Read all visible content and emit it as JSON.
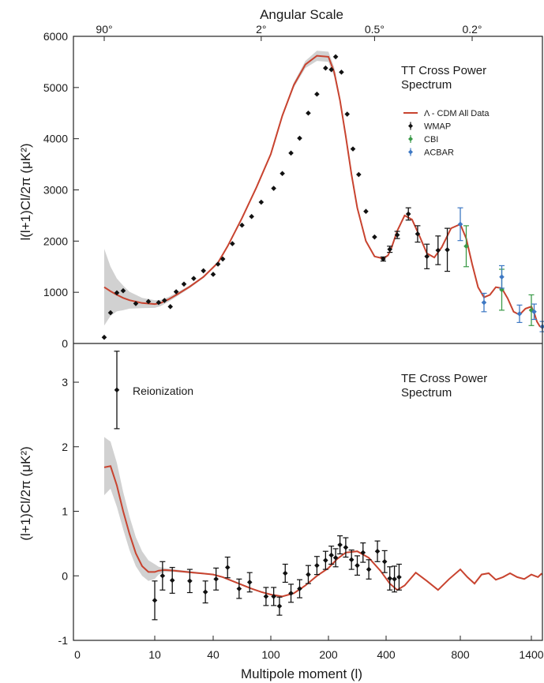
{
  "chart_data": [
    {
      "type": "scatter",
      "panel": "top",
      "title": "TT Cross Power Spectrum",
      "title_lines": [
        "TT Cross Power",
        "Spectrum"
      ],
      "top_axis_title": "Angular Scale",
      "top_ticks": [
        {
          "label": "90°",
          "l": 2
        },
        {
          "label": "2°",
          "l": 90
        },
        {
          "label": "0.5°",
          "l": 360
        },
        {
          "label": "0.2°",
          "l": 900
        }
      ],
      "ylabel": "l(l+1)Cl/2π (μK²)",
      "ylim": [
        0,
        6000
      ],
      "yticks": [
        0,
        1000,
        2000,
        3000,
        4000,
        5000,
        6000
      ],
      "legend": {
        "placement": "right",
        "entries": [
          {
            "label": "Λ - CDM All Data",
            "color": "#c8432f",
            "kind": "line"
          },
          {
            "label": "WMAP",
            "color": "#111111",
            "kind": "marker"
          },
          {
            "label": "CBI",
            "color": "#3a9a48",
            "kind": "marker"
          },
          {
            "label": "ACBAR",
            "color": "#3d78c4",
            "kind": "marker"
          }
        ]
      },
      "model": {
        "name": "Λ - CDM All Data",
        "color": "#c8432f",
        "x": [
          2,
          3,
          4,
          5,
          6,
          8,
          10,
          13,
          17,
          22,
          28,
          35,
          45,
          55,
          70,
          85,
          100,
          120,
          140,
          160,
          180,
          200,
          220,
          240,
          260,
          280,
          300,
          330,
          360,
          390,
          410,
          430,
          460,
          500,
          540,
          580,
          620,
          660,
          700,
          750,
          800,
          850,
          900,
          950,
          1000,
          1050,
          1100,
          1150,
          1200,
          1250,
          1300,
          1350,
          1400,
          1450,
          1500,
          1550,
          1600
        ],
        "y": [
          1100,
          1020,
          950,
          890,
          845,
          790,
          770,
          790,
          860,
          970,
          1110,
          1300,
          1580,
          1900,
          2450,
          3050,
          3700,
          4450,
          5050,
          5450,
          5620,
          5600,
          5300,
          4750,
          4050,
          3300,
          2650,
          2000,
          1700,
          1660,
          1720,
          1880,
          2200,
          2500,
          2420,
          2100,
          1760,
          1680,
          1880,
          2250,
          2330,
          2050,
          1550,
          1100,
          900,
          950,
          1100,
          1080,
          880,
          620,
          560,
          680,
          720,
          600,
          430,
          340,
          300
        ],
        "band_upper": [
          1850,
          1500,
          1270,
          1130,
          1010,
          890,
          845,
          850,
          905,
          1005,
          1135,
          1320,
          1600,
          1920,
          2470,
          3070,
          3720,
          4480,
          5100,
          5520,
          5720,
          5700,
          5390,
          4800,
          4080,
          3320,
          2670,
          2010,
          1710,
          1670,
          1730,
          1890,
          2210,
          2510,
          2430,
          2110,
          1770,
          1690,
          1890,
          2260,
          2340,
          2060,
          1560,
          1110,
          910,
          960,
          1110,
          1090,
          890,
          630,
          570,
          690,
          730,
          610,
          440,
          350,
          310
        ],
        "band_lower": [
          350,
          540,
          630,
          650,
          680,
          690,
          695,
          730,
          815,
          935,
          1085,
          1280,
          1560,
          1880,
          2430,
          3030,
          3680,
          4420,
          5000,
          5380,
          5520,
          5500,
          5210,
          4700,
          4020,
          3280,
          2630,
          1990,
          1690,
          1650,
          1710,
          1870,
          2190,
          2490,
          2410,
          2090,
          1750,
          1670,
          1870,
          2240,
          2320,
          2040,
          1540,
          1090,
          890,
          940,
          1090,
          1070,
          870,
          610,
          550,
          670,
          710,
          590,
          420,
          330,
          290
        ]
      },
      "series": [
        {
          "name": "WMAP",
          "color": "#111111",
          "x": [
            2,
            3,
            4,
            5,
            7,
            9,
            12,
            15,
            18,
            21,
            25,
            30,
            35,
            40,
            45,
            50,
            60,
            70,
            80,
            90,
            105,
            120,
            135,
            150,
            165,
            180,
            195,
            210,
            225,
            245,
            265,
            285,
            305,
            330,
            360,
            390,
            420,
            460,
            520,
            570,
            620,
            680,
            730
          ],
          "y": [
            120,
            600,
            990,
            1030,
            780,
            820,
            800,
            840,
            720,
            1010,
            1160,
            1270,
            1420,
            1350,
            1550,
            1650,
            1950,
            2310,
            2480,
            2760,
            3030,
            3320,
            3720,
            4010,
            4500,
            4870,
            5380,
            5350,
            5600,
            5300,
            4480,
            3800,
            3300,
            2580,
            2080,
            1650,
            1840,
            2120,
            2530,
            2140,
            1700,
            1820,
            1830
          ],
          "err": [
            0,
            0,
            0,
            0,
            0,
            0,
            0,
            0,
            0,
            0,
            0,
            0,
            0,
            0,
            0,
            0,
            0,
            0,
            0,
            0,
            0,
            0,
            0,
            0,
            0,
            0,
            0,
            0,
            0,
            0,
            0,
            0,
            0,
            0,
            0,
            40,
            60,
            70,
            120,
            160,
            240,
            280,
            420
          ]
        },
        {
          "name": "CBI",
          "color": "#3a9a48",
          "x": [
            850,
            1150,
            1400
          ],
          "y": [
            1900,
            1050,
            650
          ],
          "err": [
            400,
            400,
            300
          ]
        },
        {
          "name": "ACBAR",
          "color": "#3d78c4",
          "x": [
            800,
            1000,
            1150,
            1300,
            1450,
            1600
          ],
          "y": [
            2330,
            800,
            1300,
            580,
            620,
            330
          ],
          "err": [
            320,
            180,
            220,
            170,
            150,
            100
          ]
        }
      ]
    },
    {
      "type": "scatter",
      "panel": "bottom",
      "title": "TE Cross Power Spectrum",
      "title_lines": [
        "TE Cross Power",
        "Spectrum"
      ],
      "xlabel": "Multipole moment (l)",
      "xticks": [
        {
          "label": "0",
          "l": 0.7
        },
        {
          "label": "10",
          "l": 10
        },
        {
          "label": "40",
          "l": 40
        },
        {
          "label": "100",
          "l": 100
        },
        {
          "label": "200",
          "l": 200
        },
        {
          "label": "400",
          "l": 400
        },
        {
          "label": "800",
          "l": 800
        },
        {
          "label": "1400",
          "l": 1400
        }
      ],
      "ylabel": "(l+1)Cl/2π (μK²)",
      "ylim": [
        -1,
        3.6
      ],
      "yticks": [
        -1,
        0,
        1,
        2,
        3
      ],
      "annotations": [
        {
          "text": "Reionization",
          "x": 4,
          "y": 2.9
        }
      ],
      "model": {
        "name": "Λ - CDM All Data",
        "color": "#c8432f",
        "x": [
          2,
          3,
          4,
          5,
          6,
          7,
          8,
          9,
          10,
          12,
          15,
          20,
          30,
          40,
          50,
          60,
          70,
          80,
          90,
          100,
          120,
          140,
          160,
          180,
          200,
          230,
          260,
          300,
          340,
          380,
          420,
          460,
          500,
          560,
          620,
          680,
          740,
          800,
          860,
          920,
          980,
          1040,
          1100,
          1160,
          1220,
          1280,
          1340,
          1400,
          1460,
          1520,
          1580,
          1640
        ],
        "y": [
          1.68,
          1.7,
          1.4,
          1.0,
          0.65,
          0.35,
          0.15,
          0.06,
          0.06,
          0.08,
          0.09,
          0.08,
          0.05,
          0.02,
          -0.02,
          -0.08,
          -0.14,
          -0.2,
          -0.25,
          -0.29,
          -0.32,
          -0.27,
          -0.15,
          0.0,
          0.12,
          0.26,
          0.36,
          0.38,
          0.28,
          0.08,
          -0.12,
          -0.22,
          -0.15,
          0.05,
          -0.08,
          -0.22,
          -0.05,
          0.1,
          -0.02,
          -0.12,
          0.02,
          0.04,
          -0.06,
          -0.02,
          0.04,
          -0.02,
          -0.05,
          0.02,
          0.0,
          -0.02,
          0.03,
          0.02
        ],
        "band_upper": [
          2.15,
          2.08,
          1.75,
          1.3,
          0.92,
          0.6,
          0.38,
          0.24,
          0.18,
          0.14,
          0.12,
          0.1,
          0.065,
          0.03,
          -0.01,
          -0.07,
          -0.13,
          -0.19,
          -0.24,
          -0.28,
          -0.31,
          -0.26,
          -0.14,
          0.01,
          0.13,
          0.27,
          0.37,
          0.39,
          0.29,
          0.09,
          -0.11,
          -0.21,
          -0.14,
          0.06,
          -0.07,
          -0.21,
          -0.04,
          0.11,
          -0.01,
          -0.11,
          0.03,
          0.05,
          -0.05,
          -0.01,
          0.05,
          -0.01,
          -0.04,
          0.03,
          0.01,
          -0.01,
          0.04,
          0.03
        ],
        "band_lower": [
          1.25,
          1.35,
          1.07,
          0.72,
          0.4,
          0.15,
          0.0,
          -0.08,
          -0.05,
          0.02,
          0.06,
          0.06,
          0.035,
          0.01,
          -0.03,
          -0.09,
          -0.15,
          -0.21,
          -0.26,
          -0.3,
          -0.33,
          -0.28,
          -0.16,
          -0.01,
          0.11,
          0.25,
          0.35,
          0.37,
          0.27,
          0.07,
          -0.13,
          -0.23,
          -0.16,
          0.04,
          -0.09,
          -0.23,
          -0.06,
          0.09,
          -0.03,
          -0.13,
          0.01,
          0.03,
          -0.07,
          -0.03,
          0.03,
          -0.03,
          -0.06,
          0.01,
          -0.01,
          -0.03,
          0.02,
          0.01
        ]
      },
      "series": [
        {
          "name": "WMAP",
          "color": "#111111",
          "x": [
            4,
            10,
            14,
            19,
            28,
            36,
            43,
            55,
            67,
            78,
            95,
            105,
            115,
            125,
            135,
            150,
            165,
            180,
            195,
            210,
            225,
            240,
            260,
            280,
            300,
            320,
            340,
            370,
            395,
            420,
            445,
            470
          ],
          "y": [
            2.88,
            -0.38,
            0.0,
            -0.07,
            -0.08,
            -0.25,
            -0.05,
            0.13,
            -0.2,
            -0.1,
            -0.32,
            -0.32,
            -0.47,
            0.04,
            -0.27,
            -0.2,
            0.02,
            0.16,
            0.24,
            0.32,
            0.28,
            0.48,
            0.44,
            0.25,
            0.16,
            0.36,
            0.1,
            0.38,
            0.22,
            -0.04,
            -0.05,
            -0.02
          ],
          "err": [
            0.6,
            0.3,
            0.22,
            0.2,
            0.18,
            0.17,
            0.17,
            0.16,
            0.15,
            0.15,
            0.14,
            0.14,
            0.14,
            0.14,
            0.14,
            0.14,
            0.14,
            0.14,
            0.14,
            0.14,
            0.14,
            0.14,
            0.15,
            0.15,
            0.15,
            0.15,
            0.15,
            0.16,
            0.17,
            0.18,
            0.2,
            0.2
          ]
        }
      ]
    }
  ]
}
